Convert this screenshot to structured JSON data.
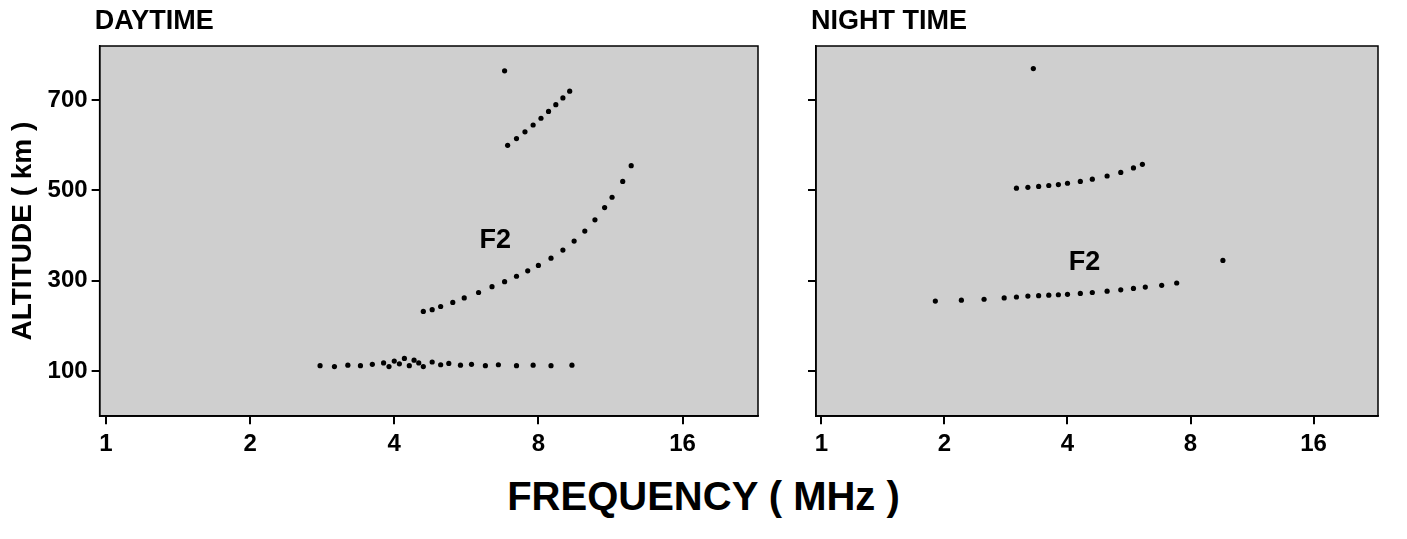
{
  "x_label": "FREQUENCY ( MHz )",
  "chart_data": [
    {
      "type": "scatter",
      "title": "DAYTIME",
      "y_label": "ALTITUDE ( km )",
      "log": "x",
      "grid": false,
      "tick_labels": true,
      "xlim": [
        0.97,
        23
      ],
      "xticks": [
        1,
        2,
        4,
        8,
        16
      ],
      "ylim": [
        0,
        820
      ],
      "yticks": [
        100,
        300,
        500,
        700
      ],
      "color": "#000000",
      "marker": "circle",
      "series": [
        {
          "x": [
            2.8,
            3.0,
            3.2,
            3.4,
            3.6,
            3.8,
            3.9,
            4.0,
            4.1,
            4.2,
            4.3,
            4.4,
            4.5,
            4.6,
            4.8,
            5.0,
            5.2,
            5.5,
            5.8,
            6.2,
            6.6,
            7.2,
            7.8,
            8.5,
            9.4
          ],
          "y": [
            112,
            110,
            113,
            112,
            115,
            118,
            110,
            122,
            116,
            128,
            112,
            124,
            118,
            110,
            120,
            114,
            117,
            113,
            115,
            112,
            114,
            112,
            113,
            112,
            113
          ]
        },
        {
          "x": [
            4.6,
            4.8,
            5.0,
            5.3,
            5.6,
            6.0,
            6.4,
            6.8,
            7.2,
            7.6,
            8.0,
            8.5,
            9.0,
            9.5,
            10.0,
            10.5,
            11.0,
            11.4,
            12.0,
            12.5
          ],
          "y": [
            232,
            236,
            243,
            252,
            262,
            274,
            287,
            298,
            310,
            322,
            334,
            350,
            368,
            388,
            410,
            435,
            462,
            485,
            520,
            555
          ]
        },
        {
          "x": [
            6.9,
            7.2,
            7.5,
            7.8,
            8.1,
            8.4,
            8.7,
            9.0,
            9.3,
            6.8
          ],
          "y": [
            600,
            615,
            630,
            645,
            660,
            675,
            690,
            705,
            720,
            765
          ]
        }
      ],
      "annotations": [
        {
          "text": "F2",
          "x": 6.5,
          "y": 390
        }
      ]
    },
    {
      "type": "scatter",
      "title": "NIGHT TIME",
      "log": "x",
      "grid": false,
      "tick_labels": "x",
      "xlim": [
        0.97,
        23
      ],
      "xticks": [
        1,
        2,
        4,
        8,
        16
      ],
      "ylim": [
        0,
        820
      ],
      "yticks": [
        100,
        300,
        500,
        700
      ],
      "color": "#000000",
      "marker": "circle",
      "series": [
        {
          "x": [
            1.9,
            2.2,
            2.5,
            2.8,
            3.0,
            3.2,
            3.4,
            3.6,
            3.8,
            4.0,
            4.3,
            4.6,
            5.0,
            5.4,
            5.8,
            6.2,
            6.8,
            7.4,
            9.6
          ],
          "y": [
            255,
            257,
            259,
            262,
            264,
            266,
            267,
            268,
            269,
            270,
            272,
            274,
            277,
            280,
            283,
            286,
            290,
            295,
            345
          ]
        },
        {
          "x": [
            3.0,
            3.2,
            3.4,
            3.6,
            3.8,
            4.0,
            4.3,
            4.6,
            5.0,
            5.4,
            5.8,
            6.1
          ],
          "y": [
            505,
            507,
            509,
            511,
            513,
            516,
            520,
            525,
            532,
            540,
            550,
            558
          ]
        },
        {
          "x": [
            3.3
          ],
          "y": [
            770
          ]
        }
      ],
      "annotations": [
        {
          "text": "F2",
          "x": 4.4,
          "y": 340
        }
      ]
    }
  ]
}
